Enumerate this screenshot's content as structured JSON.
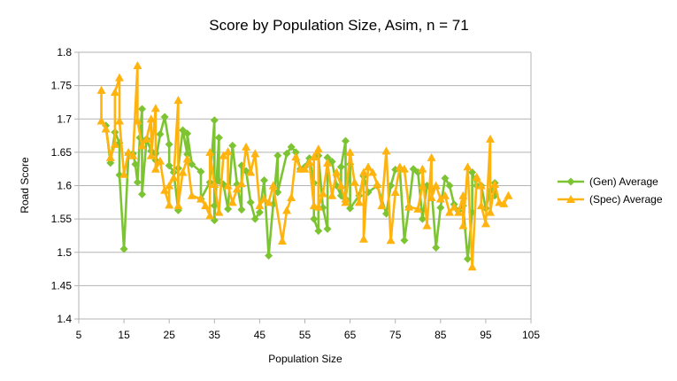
{
  "chart_data": {
    "type": "line",
    "title": "Score by Population Size, Asim, n = 71",
    "xlabel": "Population Size",
    "ylabel": "Road Score",
    "xlim": [
      5,
      105
    ],
    "ylim": [
      1.4,
      1.8
    ],
    "x_ticks": [
      "5",
      "15",
      "25",
      "35",
      "45",
      "55",
      "65",
      "75",
      "85",
      "95",
      "105"
    ],
    "y_ticks": [
      "1.4",
      "1.45",
      "1.5",
      "1.55",
      "1.6",
      "1.65",
      "1.7",
      "1.75",
      "1.8"
    ],
    "grid": "horizontal",
    "legend_position": "right",
    "series": [
      {
        "name": "(Gen) Average",
        "color": "#7dc432",
        "marker": "diamond",
        "points": [
          [
            11,
            1.69
          ],
          [
            12,
            1.634
          ],
          [
            13,
            1.68
          ],
          [
            14,
            1.664
          ],
          [
            14,
            1.616
          ],
          [
            15,
            1.505
          ],
          [
            16,
            1.648
          ],
          [
            17,
            1.648
          ],
          [
            17.5,
            1.632
          ],
          [
            18,
            1.605
          ],
          [
            18.5,
            1.672
          ],
          [
            19,
            1.715
          ],
          [
            19,
            1.587
          ],
          [
            20,
            1.67
          ],
          [
            21,
            1.652
          ],
          [
            22,
            1.648
          ],
          [
            22,
            1.638
          ],
          [
            23,
            1.677
          ],
          [
            24,
            1.703
          ],
          [
            25,
            1.662
          ],
          [
            25,
            1.63
          ],
          [
            26,
            1.62
          ],
          [
            27,
            1.563
          ],
          [
            27,
            1.626
          ],
          [
            28,
            1.683
          ],
          [
            29,
            1.647
          ],
          [
            29,
            1.678
          ],
          [
            30,
            1.632
          ],
          [
            32,
            1.621
          ],
          [
            32,
            1.58
          ],
          [
            34,
            1.605
          ],
          [
            35,
            1.698
          ],
          [
            35,
            1.57
          ],
          [
            35,
            1.548
          ],
          [
            36,
            1.672
          ],
          [
            36,
            1.607
          ],
          [
            37,
            1.602
          ],
          [
            38,
            1.565
          ],
          [
            39,
            1.66
          ],
          [
            40,
            1.602
          ],
          [
            41,
            1.564
          ],
          [
            41,
            1.63
          ],
          [
            42,
            1.622
          ],
          [
            43,
            1.575
          ],
          [
            44,
            1.55
          ],
          [
            45,
            1.56
          ],
          [
            46,
            1.608
          ],
          [
            47,
            1.495
          ],
          [
            48,
            1.572
          ],
          [
            49,
            1.645
          ],
          [
            49,
            1.59
          ],
          [
            51,
            1.648
          ],
          [
            52,
            1.658
          ],
          [
            53,
            1.65
          ],
          [
            54,
            1.625
          ],
          [
            55,
            1.628
          ],
          [
            56,
            1.641
          ],
          [
            57,
            1.604
          ],
          [
            57,
            1.55
          ],
          [
            58,
            1.532
          ],
          [
            58,
            1.645
          ],
          [
            59,
            1.567
          ],
          [
            60,
            1.535
          ],
          [
            60,
            1.642
          ],
          [
            61,
            1.636
          ],
          [
            62,
            1.6
          ],
          [
            63,
            1.585
          ],
          [
            63,
            1.628
          ],
          [
            64,
            1.667
          ],
          [
            64,
            1.58
          ],
          [
            65,
            1.632
          ],
          [
            65,
            1.566
          ],
          [
            67,
            1.585
          ],
          [
            68,
            1.614
          ],
          [
            69,
            1.59
          ],
          [
            71,
            1.6
          ],
          [
            73,
            1.558
          ],
          [
            74,
            1.6
          ],
          [
            75,
            1.624
          ],
          [
            76,
            1.625
          ],
          [
            77,
            1.518
          ],
          [
            78,
            1.568
          ],
          [
            79,
            1.625
          ],
          [
            80,
            1.62
          ],
          [
            81,
            1.55
          ],
          [
            82,
            1.6
          ],
          [
            83,
            1.595
          ],
          [
            84,
            1.507
          ],
          [
            85,
            1.567
          ],
          [
            86,
            1.611
          ],
          [
            87,
            1.6
          ],
          [
            88,
            1.572
          ],
          [
            89,
            1.562
          ],
          [
            90,
            1.57
          ],
          [
            91,
            1.49
          ],
          [
            92,
            1.56
          ],
          [
            92,
            1.62
          ],
          [
            93,
            1.6
          ],
          [
            94,
            1.6
          ],
          [
            95,
            1.566
          ],
          [
            96,
            1.592
          ],
          [
            97,
            1.604
          ],
          [
            97,
            1.585
          ]
        ]
      },
      {
        "name": "(Spec) Average",
        "color": "#ffb30f",
        "marker": "triangle",
        "points": [
          [
            10,
            1.743
          ],
          [
            10,
            1.697
          ],
          [
            11,
            1.685
          ],
          [
            12,
            1.642
          ],
          [
            13,
            1.662
          ],
          [
            13,
            1.74
          ],
          [
            14,
            1.762
          ],
          [
            14,
            1.697
          ],
          [
            15,
            1.617
          ],
          [
            16,
            1.65
          ],
          [
            17,
            1.645
          ],
          [
            18,
            1.78
          ],
          [
            18,
            1.697
          ],
          [
            19,
            1.66
          ],
          [
            20,
            1.67
          ],
          [
            21,
            1.7
          ],
          [
            21,
            1.645
          ],
          [
            22,
            1.716
          ],
          [
            22,
            1.625
          ],
          [
            23,
            1.637
          ],
          [
            24,
            1.593
          ],
          [
            25,
            1.571
          ],
          [
            25,
            1.6
          ],
          [
            26,
            1.612
          ],
          [
            27,
            1.728
          ],
          [
            27,
            1.57
          ],
          [
            28,
            1.62
          ],
          [
            29,
            1.64
          ],
          [
            30,
            1.585
          ],
          [
            32,
            1.58
          ],
          [
            33,
            1.57
          ],
          [
            34,
            1.555
          ],
          [
            34,
            1.65
          ],
          [
            35,
            1.602
          ],
          [
            36,
            1.56
          ],
          [
            37,
            1.645
          ],
          [
            38,
            1.651
          ],
          [
            38,
            1.6
          ],
          [
            39,
            1.575
          ],
          [
            40,
            1.595
          ],
          [
            41,
            1.603
          ],
          [
            42,
            1.658
          ],
          [
            43,
            1.62
          ],
          [
            44,
            1.648
          ],
          [
            45,
            1.57
          ],
          [
            46,
            1.58
          ],
          [
            47,
            1.575
          ],
          [
            48,
            1.6
          ],
          [
            50,
            1.517
          ],
          [
            51,
            1.563
          ],
          [
            52,
            1.582
          ],
          [
            53,
            1.643
          ],
          [
            54,
            1.625
          ],
          [
            55,
            1.625
          ],
          [
            56,
            1.635
          ],
          [
            57,
            1.57
          ],
          [
            57,
            1.643
          ],
          [
            58,
            1.655
          ],
          [
            58,
            1.568
          ],
          [
            59,
            1.588
          ],
          [
            60,
            1.634
          ],
          [
            61,
            1.585
          ],
          [
            62,
            1.62
          ],
          [
            63,
            1.6
          ],
          [
            64,
            1.575
          ],
          [
            64,
            1.58
          ],
          [
            65,
            1.65
          ],
          [
            66,
            1.605
          ],
          [
            67,
            1.575
          ],
          [
            68,
            1.62
          ],
          [
            68,
            1.52
          ],
          [
            69,
            1.628
          ],
          [
            70,
            1.62
          ],
          [
            71,
            1.602
          ],
          [
            72,
            1.57
          ],
          [
            73,
            1.652
          ],
          [
            74,
            1.518
          ],
          [
            75,
            1.59
          ],
          [
            76,
            1.628
          ],
          [
            77,
            1.625
          ],
          [
            78,
            1.568
          ],
          [
            80,
            1.565
          ],
          [
            81,
            1.6
          ],
          [
            81,
            1.625
          ],
          [
            82,
            1.54
          ],
          [
            83,
            1.642
          ],
          [
            83,
            1.582
          ],
          [
            84,
            1.6
          ],
          [
            85,
            1.58
          ],
          [
            86,
            1.585
          ],
          [
            87,
            1.56
          ],
          [
            88,
            1.568
          ],
          [
            89,
            1.56
          ],
          [
            90,
            1.585
          ],
          [
            90,
            1.54
          ],
          [
            91,
            1.628
          ],
          [
            92,
            1.478
          ],
          [
            93,
            1.613
          ],
          [
            94,
            1.6
          ],
          [
            94,
            1.57
          ],
          [
            95,
            1.543
          ],
          [
            96,
            1.67
          ],
          [
            96,
            1.56
          ],
          [
            97,
            1.602
          ],
          [
            98,
            1.575
          ],
          [
            99,
            1.573
          ],
          [
            100,
            1.585
          ]
        ]
      }
    ]
  }
}
